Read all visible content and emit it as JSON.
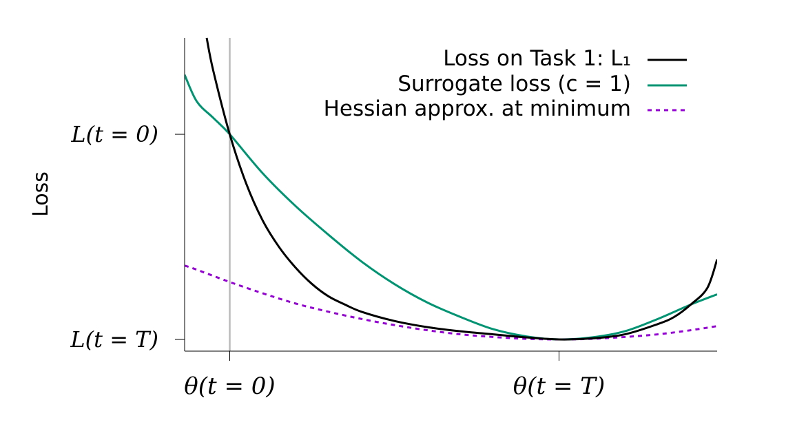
{
  "chart_data": {
    "type": "line",
    "ylabel": "Loss",
    "x_ticks": [
      {
        "label": "θ(t = 0)",
        "x": 0
      },
      {
        "label": "θ(t = T)",
        "x": 1
      }
    ],
    "y_ticks": [
      {
        "label": "L(t = 0)",
        "y": 1
      },
      {
        "label": "L(t = T)",
        "y": 0
      }
    ],
    "xlim": [
      -0.137,
      1.48
    ],
    "ylim": [
      -0.057,
      1.47
    ],
    "legend_position": "top-right",
    "grid": false,
    "vline": {
      "x": 0,
      "color": "#bbbbbb"
    },
    "series": [
      {
        "name": "Loss on Task 1: L₁",
        "color": "#000000",
        "style": "solid",
        "x": [
          -0.07,
          -0.05,
          0,
          0.05,
          0.1,
          0.15,
          0.2,
          0.25,
          0.3,
          0.35,
          0.4,
          0.5,
          0.6,
          0.7,
          0.8,
          0.9,
          1.0,
          1.1,
          1.2,
          1.3,
          1.35,
          1.4,
          1.45,
          1.48
        ],
        "y": [
          1.47,
          1.31,
          1.0,
          0.76,
          0.58,
          0.45,
          0.35,
          0.27,
          0.21,
          0.17,
          0.135,
          0.09,
          0.06,
          0.04,
          0.025,
          0.01,
          0.0,
          0.005,
          0.025,
          0.075,
          0.11,
          0.17,
          0.25,
          0.39
        ]
      },
      {
        "name": "Surrogate loss (c = 1)",
        "color": "#009473",
        "style": "solid",
        "x": [
          -0.137,
          -0.1,
          -0.05,
          0,
          0.1,
          0.2,
          0.3,
          0.4,
          0.5,
          0.6,
          0.7,
          0.8,
          0.9,
          1.0,
          1.1,
          1.2,
          1.3,
          1.4,
          1.48
        ],
        "y": [
          1.29,
          1.16,
          1.08,
          1.0,
          0.81,
          0.65,
          0.51,
          0.38,
          0.27,
          0.18,
          0.11,
          0.05,
          0.015,
          0.0,
          0.01,
          0.04,
          0.1,
          0.17,
          0.22
        ]
      },
      {
        "name": "Hessian approx. at minimum",
        "color": "#9400d3",
        "style": "dashed",
        "x": [
          -0.137,
          -0.1,
          0,
          0.1,
          0.2,
          0.3,
          0.4,
          0.5,
          0.6,
          0.7,
          0.8,
          0.9,
          1.0,
          1.1,
          1.2,
          1.3,
          1.4,
          1.48
        ],
        "y": [
          0.36,
          0.34,
          0.28,
          0.225,
          0.175,
          0.135,
          0.1,
          0.07,
          0.045,
          0.025,
          0.012,
          0.003,
          0.0,
          0.003,
          0.012,
          0.025,
          0.045,
          0.065
        ]
      }
    ]
  }
}
